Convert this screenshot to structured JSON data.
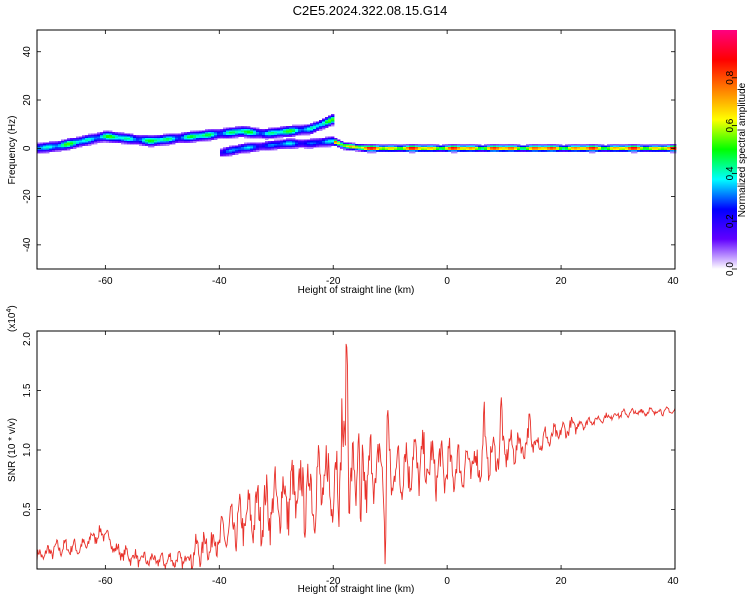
{
  "title": "C2E5.2024.322.08.15.G14",
  "chart_data": [
    {
      "type": "heatmap",
      "xlabel": "Height of straight line (km)",
      "ylabel": "Frequency (Hz)",
      "xlim": [
        -72,
        40
      ],
      "ylim": [
        -50,
        49
      ],
      "xticks": [
        -60,
        -40,
        -20,
        0,
        20,
        40
      ],
      "yticks": [
        -40,
        -20,
        0,
        20,
        40
      ],
      "colorbar": {
        "label": "Normalized spectral amplitude",
        "range": [
          0,
          1
        ],
        "ticks": [
          0.0,
          0.2,
          0.4,
          0.6,
          0.8
        ],
        "colors": [
          "#ffffff",
          "#6000ff",
          "#0000ff",
          "#00ffff",
          "#00ff00",
          "#ffff00",
          "#ff8000",
          "#ff0000",
          "#ff0080"
        ]
      },
      "ridges": [
        {
          "points": [
            [
              -72,
              0
            ],
            [
              -68,
              1
            ],
            [
              -64,
              3
            ],
            [
              -60,
              5
            ],
            [
              -56,
              4
            ],
            [
              -52,
              3
            ],
            [
              -48,
              4
            ],
            [
              -44,
              5
            ],
            [
              -40,
              6
            ],
            [
              -36,
              7
            ],
            [
              -32,
              6
            ],
            [
              -28,
              7
            ],
            [
              -24,
              8
            ],
            [
              -20,
              12
            ]
          ],
          "peak": 0.55,
          "spread": 1.6
        },
        {
          "points": [
            [
              -40,
              -2
            ],
            [
              -36,
              0
            ],
            [
              -32,
              1
            ],
            [
              -28,
              2
            ],
            [
              -24,
              2
            ],
            [
              -20,
              3
            ]
          ],
          "peak": 0.4,
          "spread": 1.5
        },
        {
          "points": [
            [
              -20,
              3
            ],
            [
              -18,
              1
            ],
            [
              -14,
              0
            ],
            [
              -10,
              0
            ],
            [
              -6,
              0
            ],
            [
              0,
              0
            ],
            [
              10,
              0
            ],
            [
              20,
              0
            ],
            [
              30,
              0
            ],
            [
              40,
              0
            ]
          ],
          "peak": 0.95,
          "spread": 1.0
        }
      ]
    },
    {
      "type": "line",
      "xlabel": "Height of straight line (km)",
      "ylabel": "SNR (10 * v/v)",
      "yscale_label": "(x10",
      "yscale_exp": "4",
      "yscale_close": ")",
      "xlim": [
        -72,
        40
      ],
      "ylim": [
        0,
        2.0
      ],
      "xticks": [
        -60,
        -40,
        -20,
        0,
        20,
        40
      ],
      "yticks": [
        0.5,
        1.0,
        1.5,
        2.0
      ],
      "ytick_labels": [
        "0.5",
        "1.0",
        "1.5",
        "2.0"
      ],
      "color": "#e8312a",
      "anchors": [
        [
          -72,
          0.1
        ],
        [
          -68,
          0.18
        ],
        [
          -64,
          0.18
        ],
        [
          -62,
          0.28
        ],
        [
          -60,
          0.3
        ],
        [
          -58,
          0.15
        ],
        [
          -54,
          0.08
        ],
        [
          -50,
          0.07
        ],
        [
          -46,
          0.08
        ],
        [
          -43,
          0.18
        ],
        [
          -40,
          0.25
        ],
        [
          -36,
          0.4
        ],
        [
          -32,
          0.5
        ],
        [
          -28,
          0.6
        ],
        [
          -24,
          0.65
        ],
        [
          -21,
          0.72
        ],
        [
          -19,
          0.75
        ],
        [
          -17.5,
          0.8
        ],
        [
          -16,
          0.7
        ],
        [
          -14,
          0.8
        ],
        [
          -12,
          0.85
        ],
        [
          -10,
          0.8
        ],
        [
          -6,
          0.9
        ],
        [
          -2,
          0.85
        ],
        [
          2,
          0.85
        ],
        [
          6,
          0.9
        ],
        [
          10,
          1.0
        ],
        [
          14,
          1.05
        ],
        [
          18,
          1.1
        ],
        [
          22,
          1.2
        ],
        [
          26,
          1.25
        ],
        [
          30,
          1.3
        ],
        [
          34,
          1.32
        ],
        [
          40,
          1.33
        ]
      ],
      "spikes": [
        [
          -17.6,
          2.0
        ],
        [
          -10.5,
          1.38
        ],
        [
          -15.5,
          1.38
        ],
        [
          -18.5,
          1.4
        ],
        [
          -10.8,
          0.1
        ],
        [
          -15.2,
          0.02
        ],
        [
          6.5,
          1.25
        ],
        [
          9.5,
          1.32
        ],
        [
          14.5,
          1.25
        ]
      ]
    }
  ]
}
